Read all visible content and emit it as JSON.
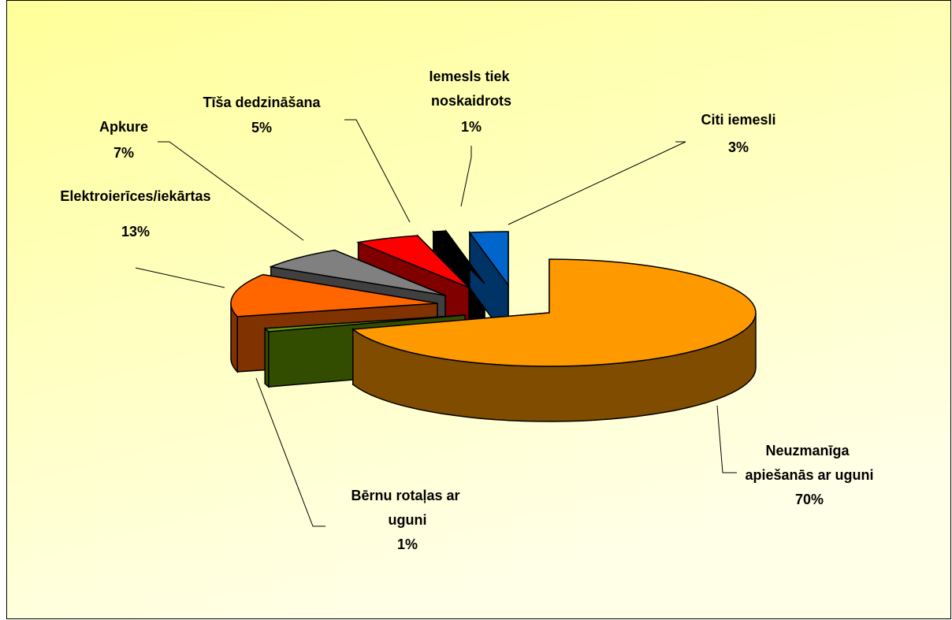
{
  "chart_data": {
    "type": "pie3d",
    "categories": [
      "Neuzmanīga apiešanās ar uguni",
      "Bērnu rotaļas ar uguni",
      "Elektroierīces/iekārtas",
      "Apkure",
      "Tīša dedzināšana",
      "Iemesls tiek noskaidrots",
      "Citi iemesli"
    ],
    "values": [
      70,
      1,
      13,
      7,
      5,
      1,
      3
    ],
    "value_labels": [
      "70%",
      "1%",
      "13%",
      "7%",
      "5%",
      "1%",
      "3%"
    ],
    "colors": [
      "#FF9900",
      "#669900",
      "#FF6600",
      "#808080",
      "#FF0000",
      "#000000",
      "#0066CC"
    ]
  }
}
